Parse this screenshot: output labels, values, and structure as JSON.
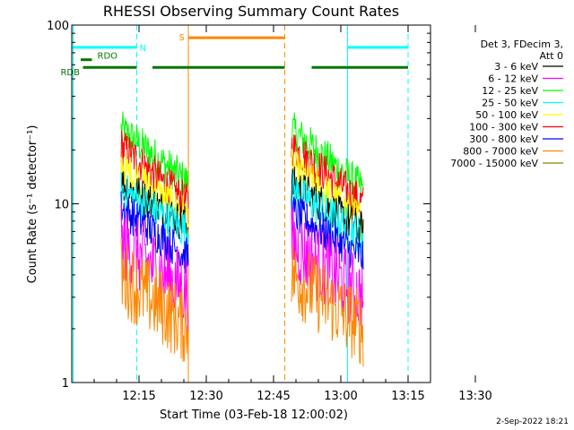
{
  "chart_data": {
    "type": "line",
    "title": "RHESSI Observing Summary Count Rates",
    "xlabel": "Start Time (03-Feb-18 12:00:02)",
    "ylabel": "Count Rate (s⁻¹ detector⁻¹)",
    "y_scale": "log",
    "ylim": [
      1,
      100
    ],
    "xlim_minutes_after_start": [
      0,
      80
    ],
    "x_ticks": [
      "12:15",
      "12:30",
      "12:45",
      "13:00",
      "13:15",
      "13:30"
    ],
    "y_ticks": [
      "1",
      "10",
      "100"
    ],
    "legend": {
      "placement": "right",
      "header": [
        "Det 3, FDecim 3,",
        "Att 0"
      ],
      "entries": [
        {
          "label": "3 - 6 keV",
          "color": "#000000"
        },
        {
          "label": "6 - 12 keV",
          "color": "#ff00ff"
        },
        {
          "label": "12 - 25 keV",
          "color": "#00ff00"
        },
        {
          "label": "25 - 50 keV",
          "color": "#00ffff"
        },
        {
          "label": "50 - 100 keV",
          "color": "#ffff00"
        },
        {
          "label": "100 - 300 keV",
          "color": "#ff0000"
        },
        {
          "label": "300 - 800 keV",
          "color": "#0000ff"
        },
        {
          "label": "800 - 7000 keV",
          "color": "#ff8800"
        },
        {
          "label": "7000 - 15000 keV",
          "color": "#888800"
        }
      ]
    },
    "series": [
      {
        "name": "12 - 25 keV",
        "color": "#00ff00",
        "segments": [
          {
            "x": [
              11,
              26
            ],
            "y": [
              26,
              13
            ]
          },
          {
            "x": [
              49,
              65
            ],
            "y": [
              26,
              12
            ]
          }
        ]
      },
      {
        "name": "100 - 300 keV",
        "color": "#ff0000",
        "segments": [
          {
            "x": [
              11,
              26
            ],
            "y": [
              21,
              10
            ]
          },
          {
            "x": [
              49,
              65
            ],
            "y": [
              21,
              10
            ]
          }
        ]
      },
      {
        "name": "50 - 100 keV",
        "color": "#ffff00",
        "segments": [
          {
            "x": [
              11,
              26
            ],
            "y": [
              16,
              8.5
            ]
          },
          {
            "x": [
              49,
              65
            ],
            "y": [
              16,
              8
            ]
          }
        ]
      },
      {
        "name": "3 - 6 keV",
        "color": "#000000",
        "segments": [
          {
            "x": [
              11,
              26
            ],
            "y": [
              13,
              7.5
            ]
          },
          {
            "x": [
              49,
              65
            ],
            "y": [
              13,
              7
            ]
          }
        ]
      },
      {
        "name": "25 - 50 keV",
        "color": "#00ffff",
        "segments": [
          {
            "x": [
              11,
              26
            ],
            "y": [
              12,
              7
            ]
          },
          {
            "x": [
              49,
              65
            ],
            "y": [
              12,
              6.5
            ]
          }
        ]
      },
      {
        "name": "300 - 800 keV",
        "color": "#0000ff",
        "segments": [
          {
            "x": [
              11,
              26
            ],
            "y": [
              9.5,
              5
            ]
          },
          {
            "x": [
              49,
              65
            ],
            "y": [
              9,
              5
            ]
          }
        ]
      },
      {
        "name": "6 - 12 keV",
        "color": "#ff00ff",
        "segments": [
          {
            "x": [
              11,
              26
            ],
            "y": [
              6,
              3.2
            ]
          },
          {
            "x": [
              49,
              65
            ],
            "y": [
              6,
              3
            ]
          }
        ]
      },
      {
        "name": "800 - 7000 keV",
        "color": "#ff8800",
        "segments": [
          {
            "x": [
              11,
              26
            ],
            "y": [
              4,
              2
            ]
          },
          {
            "x": [
              49,
              65
            ],
            "y": [
              4,
              2
            ]
          }
        ]
      }
    ],
    "flags": [
      {
        "label": "N",
        "color": "#00ffff",
        "y": 75,
        "segments": [
          [
            0,
            14.5
          ],
          [
            61.5,
            75
          ]
        ]
      },
      {
        "label": "S",
        "color": "#ff8800",
        "y": 85,
        "segments": [
          [
            26,
            47.5
          ]
        ]
      },
      {
        "label": "RDO",
        "color": "#007700",
        "y": 64,
        "segments": [
          [
            2,
            4.5
          ]
        ]
      },
      {
        "label": "RDB",
        "color": "#007700",
        "y": 58,
        "segments": [
          [
            2.5,
            14.5
          ],
          [
            18,
            47.5
          ],
          [
            53.5,
            75
          ]
        ]
      }
    ],
    "event_lines": [
      {
        "x": 0.3,
        "color": "#00ffff",
        "style": "solid"
      },
      {
        "x": 14.5,
        "color": "#00ffff",
        "style": "dashed"
      },
      {
        "x": 26,
        "color": "#ff8800",
        "style": "solid"
      },
      {
        "x": 47.5,
        "color": "#ff8800",
        "style": "dashed"
      },
      {
        "x": 61.5,
        "color": "#00ffff",
        "style": "solid"
      },
      {
        "x": 75,
        "color": "#00ffff",
        "style": "dashed"
      }
    ],
    "grid": false
  },
  "footer": {
    "timestamp": "2-Sep-2022 18:21"
  }
}
